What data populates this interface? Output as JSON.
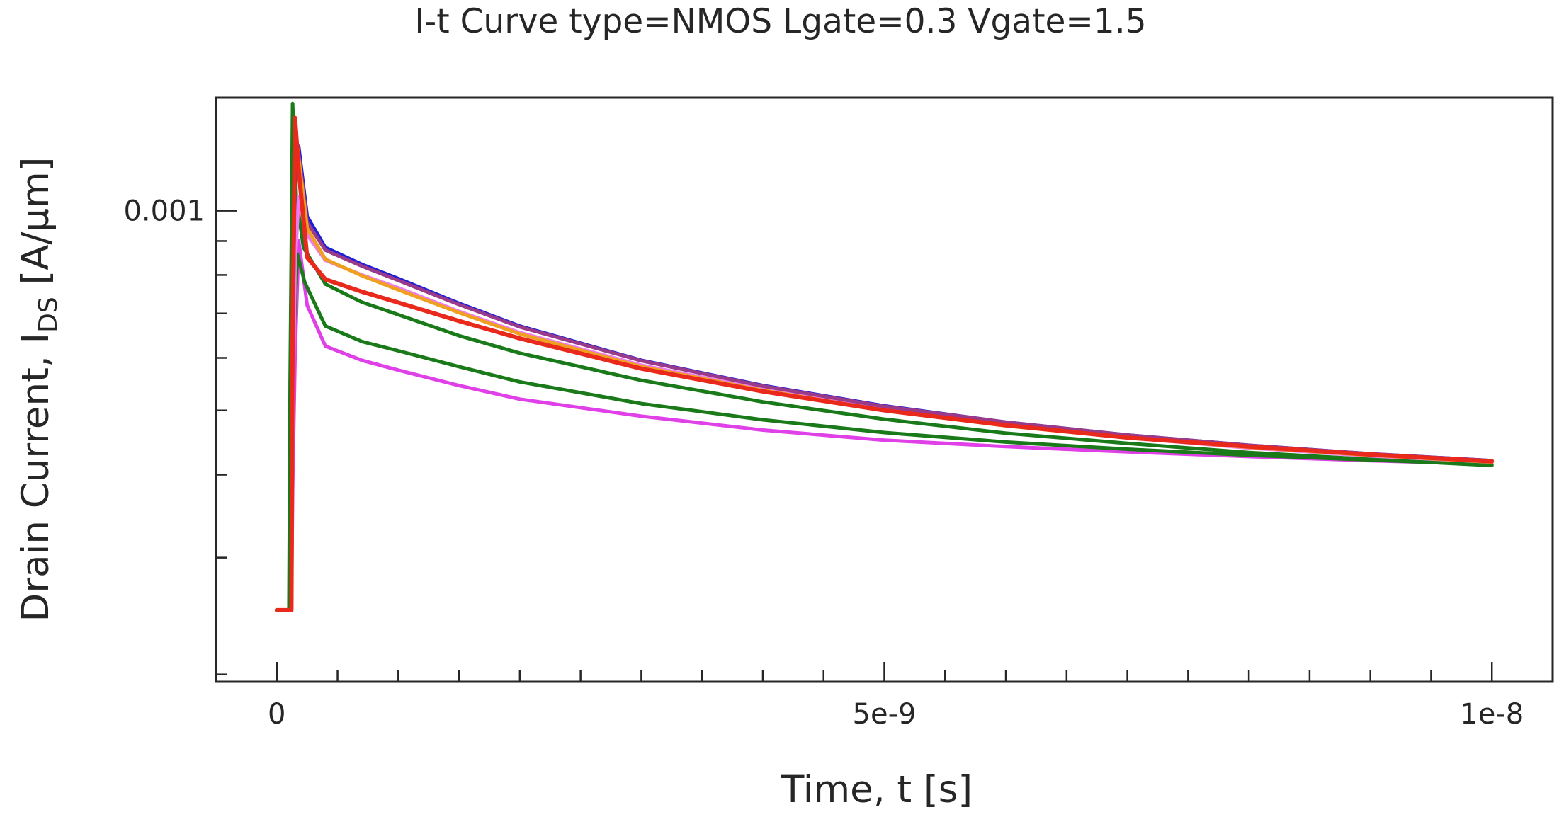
{
  "chart_data": {
    "type": "line",
    "title": "I-t Curve type=NMOS Lgate=0.3 Vgate=1.5",
    "xlabel": "Time, t [s]",
    "ylabel_main": "Drain Current, I",
    "ylabel_sub": "DS",
    "ylabel_unit": " [A/μm]",
    "x_scale": "linear",
    "y_scale": "log",
    "xlim": [
      -5e-10,
      1.05e-08
    ],
    "ylim": [
      0.000195,
      0.00148
    ],
    "x_ticks": [
      {
        "value": 0,
        "label": "0"
      },
      {
        "value": 5e-09,
        "label": "5e-9"
      },
      {
        "value": 1e-08,
        "label": "1e-8"
      }
    ],
    "y_ticks": [
      {
        "value": 0.001,
        "label": "0.001"
      }
    ],
    "legend": "none",
    "grid": false,
    "series": [
      {
        "color": "#e040e8",
        "x": [
          0,
          1.2e-10,
          1.3e-10,
          1.5e-10,
          1.8e-10,
          2.5e-10,
          4e-10,
          7e-10,
          1e-09,
          1.5e-09,
          2e-09,
          3e-09,
          4e-09,
          5e-09,
          6e-09,
          7e-09,
          8e-09,
          9e-09,
          1e-08
        ],
        "y": [
          0.00025,
          0.00025,
          0.00038,
          0.0006,
          0.0009,
          0.00072,
          0.000625,
          0.000595,
          0.000575,
          0.000545,
          0.00052,
          0.00049,
          0.000467,
          0.000451,
          0.000441,
          0.000433,
          0.000426,
          0.00042,
          0.000415
        ]
      },
      {
        "color": "#1a7a1a",
        "x": [
          0,
          1.1e-10,
          1.2e-10,
          1.4e-10,
          1.7e-10,
          2.3e-10,
          4e-10,
          7e-10,
          1e-09,
          1.5e-09,
          2e-09,
          3e-09,
          4e-09,
          5e-09,
          6e-09,
          7e-09,
          8e-09,
          9e-09,
          1e-08
        ],
        "y": [
          0.00025,
          0.00025,
          0.0004,
          0.00065,
          0.00086,
          0.00078,
          0.00067,
          0.000635,
          0.000615,
          0.000582,
          0.000552,
          0.000512,
          0.000484,
          0.000463,
          0.000448,
          0.000437,
          0.000428,
          0.000421,
          0.000414
        ]
      },
      {
        "color": "#1a7a1a",
        "x": [
          0,
          1e-10,
          1.1e-10,
          1.3e-10,
          1.6e-10,
          2.2e-10,
          4e-10,
          7e-10,
          1e-09,
          1.5e-09,
          2e-09,
          3e-09,
          4e-09,
          5e-09,
          6e-09,
          7e-09,
          8e-09,
          9e-09,
          1e-08
        ],
        "y": [
          0.00025,
          0.00025,
          0.00055,
          0.00145,
          0.00105,
          0.00088,
          0.000775,
          0.000728,
          0.000697,
          0.000648,
          0.00061,
          0.000555,
          0.000515,
          0.000485,
          0.000462,
          0.000446,
          0.000432,
          0.000422,
          0.000413
        ]
      },
      {
        "color": "#f07af0",
        "x": [
          0,
          1.2e-10,
          1.3e-10,
          1.5e-10,
          1.8e-10,
          2.5e-10,
          4e-10,
          7e-10,
          1e-09,
          1.5e-09,
          2e-09,
          3e-09,
          4e-09,
          5e-09,
          6e-09,
          7e-09,
          8e-09,
          9e-09,
          1e-08
        ],
        "y": [
          0.00025,
          0.00025,
          0.00045,
          0.00082,
          0.00105,
          0.00092,
          0.000842,
          0.0008,
          0.000765,
          0.000705,
          0.000655,
          0.000585,
          0.000538,
          0.000502,
          0.000475,
          0.000455,
          0.000439,
          0.000427,
          0.000418
        ]
      },
      {
        "color": "#1f1fd6",
        "x": [
          0,
          1.2e-10,
          1.3e-10,
          1.5e-10,
          1.8e-10,
          2.5e-10,
          4e-10,
          7e-10,
          1e-09,
          1.5e-09,
          2e-09,
          3e-09,
          4e-09,
          5e-09,
          6e-09,
          7e-09,
          8e-09,
          9e-09,
          1e-08
        ],
        "y": [
          0.00025,
          0.00025,
          0.0006,
          0.0012,
          0.00125,
          0.00098,
          0.00088,
          0.00083,
          0.00079,
          0.000725,
          0.00067,
          0.000595,
          0.000545,
          0.000508,
          0.00048,
          0.000459,
          0.000443,
          0.00043,
          0.00042
        ]
      },
      {
        "color": "#9a3a8a",
        "x": [
          0,
          1.2e-10,
          1.3e-10,
          1.5e-10,
          1.8e-10,
          2.5e-10,
          4e-10,
          7e-10,
          1e-09,
          1.5e-09,
          2e-09,
          3e-09,
          4e-09,
          5e-09,
          6e-09,
          7e-09,
          8e-09,
          9e-09,
          1e-08
        ],
        "y": [
          0.00025,
          0.00025,
          0.00058,
          0.00118,
          0.00122,
          0.00096,
          0.000872,
          0.000825,
          0.000785,
          0.000722,
          0.000668,
          0.000594,
          0.000544,
          0.000507,
          0.00048,
          0.000459,
          0.000443,
          0.00043,
          0.00042
        ]
      },
      {
        "color": "#f0a020",
        "x": [
          0,
          1.2e-10,
          1.3e-10,
          1.5e-10,
          1.8e-10,
          2.5e-10,
          4e-10,
          7e-10,
          1e-09,
          1.5e-09,
          2e-09,
          3e-09,
          4e-09,
          5e-09,
          6e-09,
          7e-09,
          8e-09,
          9e-09,
          1e-08
        ],
        "y": [
          0.00025,
          0.00025,
          0.0006,
          0.00135,
          0.0012,
          0.00094,
          0.000845,
          0.000798,
          0.00076,
          0.000702,
          0.000652,
          0.000582,
          0.000536,
          0.0005,
          0.000474,
          0.000455,
          0.00044,
          0.000428,
          0.000418
        ]
      },
      {
        "color": "#e8291c",
        "x": [
          0,
          1.2e-10,
          1.3e-10,
          1.5e-10,
          1.8e-10,
          2.5e-10,
          4e-10,
          7e-10,
          1e-09,
          1.5e-09,
          2e-09,
          3e-09,
          4e-09,
          5e-09,
          6e-09,
          7e-09,
          8e-09,
          9e-09,
          1e-08
        ],
        "y": [
          0.00025,
          0.00025,
          0.00065,
          0.00138,
          0.00115,
          0.00085,
          0.000788,
          0.000755,
          0.000727,
          0.000682,
          0.000642,
          0.000578,
          0.000534,
          0.0005,
          0.000475,
          0.000455,
          0.000441,
          0.000429,
          0.000419
        ]
      }
    ]
  }
}
